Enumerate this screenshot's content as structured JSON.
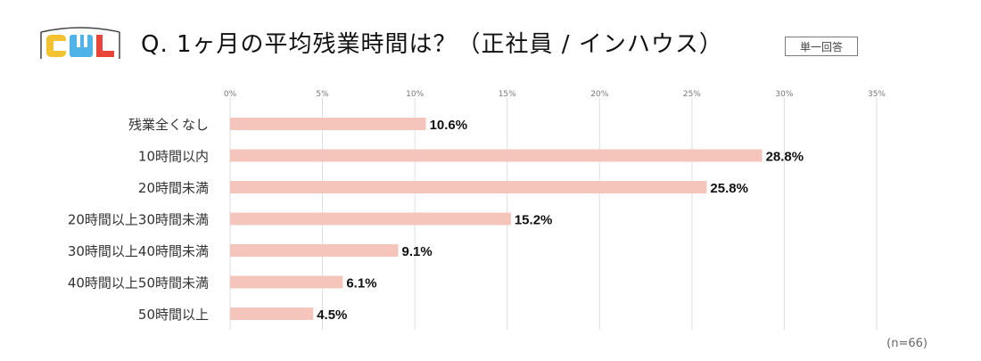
{
  "header": {
    "logo_text": "CWL",
    "title": "Q. 1ヶ月の平均残業時間は？（正社員 / インハウス）",
    "badge": "単一回答"
  },
  "footer": {
    "sample_note": "(n=66)"
  },
  "chart_data": {
    "type": "bar",
    "orientation": "horizontal",
    "categories": [
      "残業全くなし",
      "10時間以内",
      "20時間未満",
      "20時間以上30時間未満",
      "30時間以上40時間未満",
      "40時間以上50時間未満",
      "50時間以上"
    ],
    "values": [
      10.6,
      28.8,
      25.8,
      15.2,
      9.1,
      6.1,
      4.5
    ],
    "value_labels": [
      "10.6%",
      "28.8%",
      "25.8%",
      "15.2%",
      "9.1%",
      "6.1%",
      "4.5%"
    ],
    "xticks": [
      0,
      5,
      10,
      15,
      20,
      25,
      30,
      35
    ],
    "xtick_labels": [
      "0%",
      "5%",
      "10%",
      "15%",
      "20%",
      "25%",
      "30%",
      "35%"
    ],
    "xlim": [
      0,
      35
    ],
    "grid": true,
    "bar_color": "#f5c4bb",
    "grid_color": "#dedede"
  }
}
